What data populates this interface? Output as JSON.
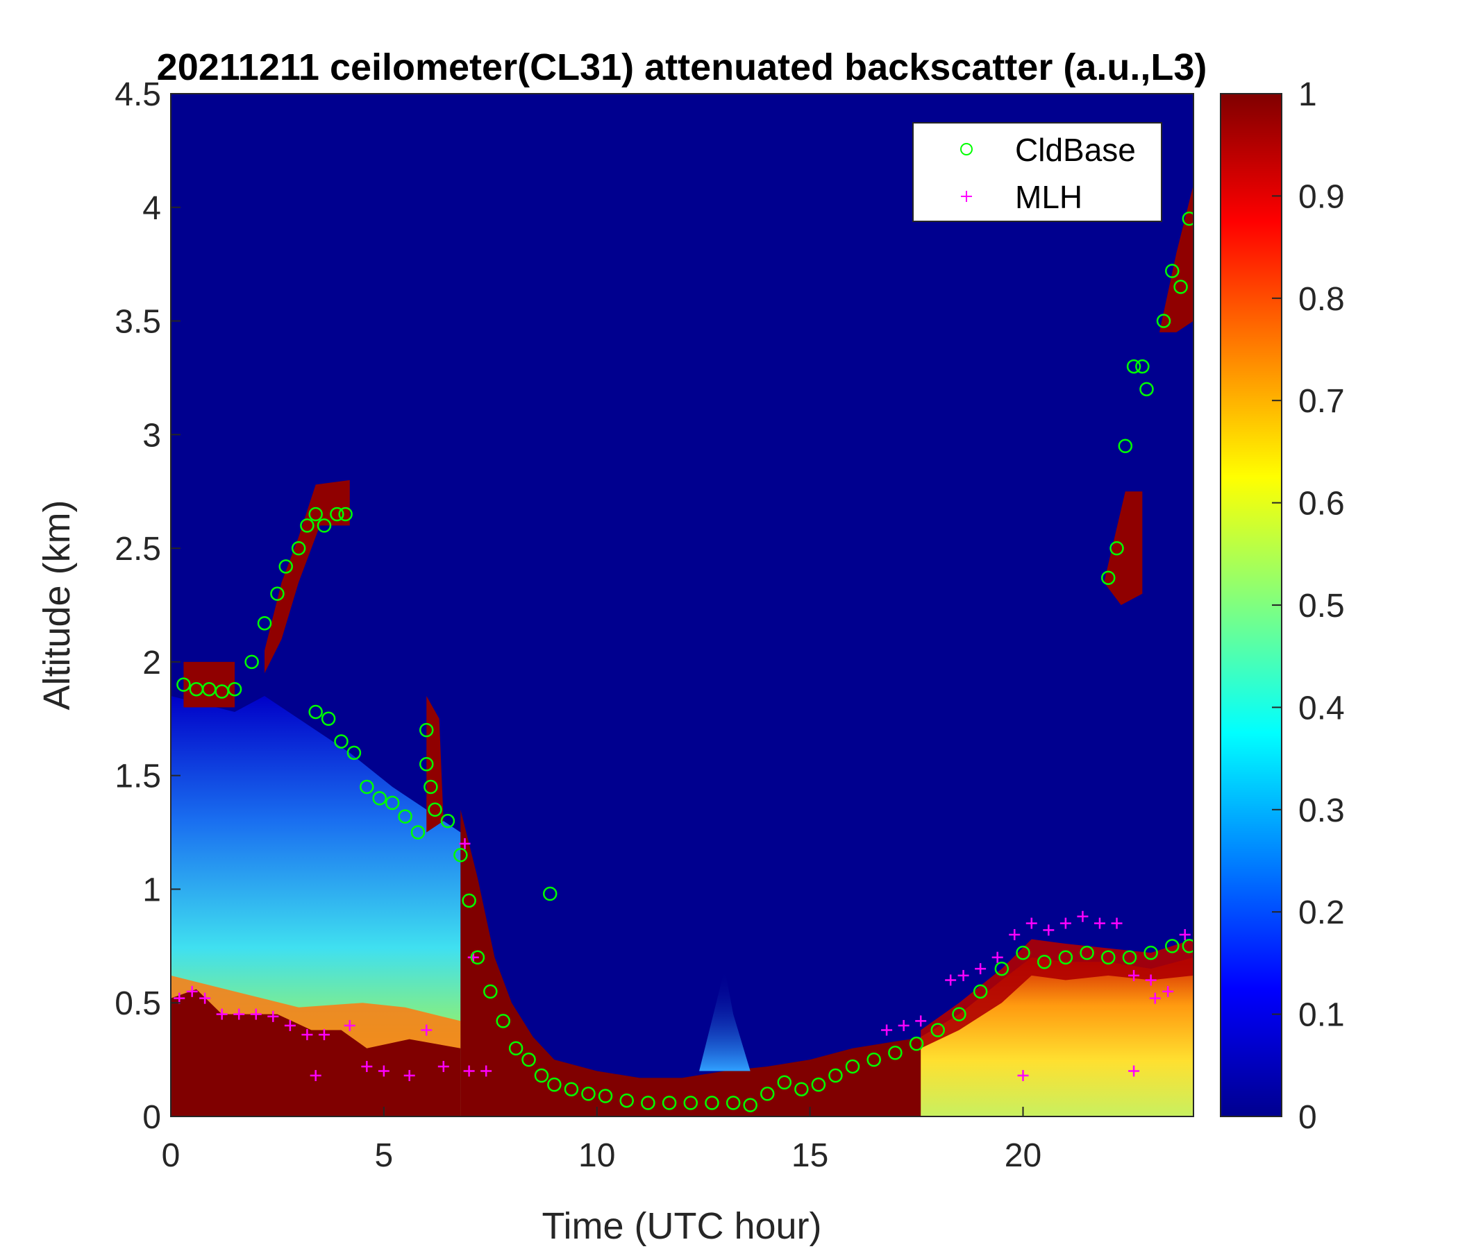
{
  "chart_data": {
    "type": "heatmap",
    "title": "20211211 ceilometer(CL31) attenuated backscatter (a.u.,L3)",
    "xlabel": "Time (UTC hour)",
    "ylabel": "Altitude (km)",
    "xlim": [
      0,
      24
    ],
    "ylim": [
      0,
      4.5
    ],
    "x_ticks": [
      0,
      5,
      10,
      15,
      20
    ],
    "x_tick_labels": [
      "0",
      "5",
      "10",
      "15",
      "20"
    ],
    "y_ticks": [
      0,
      0.5,
      1,
      1.5,
      2,
      2.5,
      3,
      3.5,
      4,
      4.5
    ],
    "y_tick_labels": [
      "0",
      "0.5",
      "1",
      "1.5",
      "2",
      "2.5",
      "3",
      "3.5",
      "4",
      "4.5"
    ],
    "colorbar": {
      "colormap": "jet",
      "range": [
        0,
        1
      ],
      "ticks": [
        0,
        0.1,
        0.2,
        0.3,
        0.4,
        0.5,
        0.6,
        0.7,
        0.8,
        0.9,
        1
      ],
      "tick_labels": [
        "0",
        "0.1",
        "0.2",
        "0.3",
        "0.4",
        "0.5",
        "0.6",
        "0.7",
        "0.8",
        "0.9",
        "1"
      ]
    },
    "grid": false,
    "legend": {
      "position": "top-right",
      "entries": [
        {
          "label": "CldBase",
          "marker": "circle",
          "color": "#00ff00"
        },
        {
          "label": "MLH",
          "marker": "plus",
          "color": "#ff00ff"
        }
      ]
    },
    "field_layers": [
      {
        "kind": "column_profile",
        "x": [
          0,
          6.8
        ],
        "bottom_value": 1.0,
        "top_km": [
          1.8,
          1.3
        ],
        "note": "boundary layer aerosol: high near surface, decreasing upward"
      },
      {
        "kind": "band",
        "x": [
          6.8,
          10
        ],
        "y_top_km": [
          1.2,
          0.2
        ],
        "value": 1.0
      },
      {
        "kind": "band",
        "x": [
          10,
          17.5
        ],
        "y_top_km": [
          0.2,
          0.3
        ],
        "value": 1.0
      },
      {
        "kind": "band",
        "x": [
          17.5,
          24
        ],
        "y_top_km": [
          0.6,
          0.7
        ],
        "value": 0.65
      },
      {
        "kind": "cloud",
        "x": [
          2.2,
          4.2
        ],
        "y_km": [
          2.0,
          2.8
        ],
        "value": 1.0
      },
      {
        "kind": "cloud",
        "x": [
          21.9,
          22.8
        ],
        "y_km": [
          2.3,
          2.8
        ],
        "value": 1.0
      },
      {
        "kind": "cloud",
        "x": [
          23.0,
          24
        ],
        "y_km": [
          3.4,
          4.2
        ],
        "value": 1.0
      }
    ],
    "series": [
      {
        "name": "CldBase",
        "marker": "circle",
        "x": [
          0.3,
          0.6,
          0.9,
          1.2,
          1.5,
          1.9,
          2.2,
          2.5,
          2.7,
          3.0,
          3.2,
          3.4,
          3.6,
          3.9,
          4.1,
          3.4,
          3.7,
          4.0,
          4.3,
          4.6,
          4.9,
          5.2,
          5.5,
          5.8,
          6.0,
          6.0,
          6.1,
          6.2,
          6.5,
          6.8,
          7.0,
          7.2,
          7.5,
          7.8,
          8.1,
          8.4,
          8.7,
          9.0,
          9.4,
          9.8,
          10.2,
          10.7,
          11.2,
          11.7,
          12.2,
          12.7,
          13.2,
          13.6,
          14.0,
          14.4,
          14.8,
          15.2,
          15.6,
          16.0,
          16.5,
          17.0,
          17.5,
          18.0,
          18.5,
          19.0,
          19.5,
          20.0,
          20.5,
          21.0,
          21.5,
          22.0,
          22.5,
          23.0,
          23.5,
          23.9,
          8.9,
          22.0,
          22.2,
          22.4,
          22.6,
          22.8,
          22.9,
          23.3,
          23.5,
          23.7,
          23.9
        ],
        "y": [
          1.9,
          1.88,
          1.88,
          1.87,
          1.88,
          2.0,
          2.17,
          2.3,
          2.42,
          2.5,
          2.6,
          2.65,
          2.6,
          2.65,
          2.65,
          1.78,
          1.75,
          1.65,
          1.6,
          1.45,
          1.4,
          1.38,
          1.32,
          1.25,
          1.7,
          1.55,
          1.45,
          1.35,
          1.3,
          1.15,
          0.95,
          0.7,
          0.55,
          0.42,
          0.3,
          0.25,
          0.18,
          0.14,
          0.12,
          0.1,
          0.09,
          0.07,
          0.06,
          0.06,
          0.06,
          0.06,
          0.06,
          0.05,
          0.1,
          0.15,
          0.12,
          0.14,
          0.18,
          0.22,
          0.25,
          0.28,
          0.32,
          0.38,
          0.45,
          0.55,
          0.65,
          0.72,
          0.68,
          0.7,
          0.72,
          0.7,
          0.7,
          0.72,
          0.75,
          0.75,
          0.98,
          2.37,
          2.5,
          2.95,
          3.3,
          3.3,
          3.2,
          3.5,
          3.72,
          3.65,
          3.95
        ]
      },
      {
        "name": "MLH",
        "marker": "plus",
        "x": [
          0.2,
          0.5,
          0.8,
          1.2,
          1.6,
          2.0,
          2.4,
          2.8,
          3.2,
          3.6,
          3.4,
          4.2,
          4.6,
          5.0,
          5.6,
          6.0,
          6.4,
          7.0,
          7.4,
          6.9,
          7.1,
          18.3,
          18.6,
          19.0,
          19.4,
          19.8,
          20.2,
          20.6,
          21.0,
          21.4,
          21.8,
          22.2,
          22.6,
          23.0,
          23.4,
          23.8,
          20.0,
          22.6,
          16.8,
          17.2,
          17.6,
          23.1
        ],
        "y": [
          0.52,
          0.55,
          0.52,
          0.45,
          0.45,
          0.45,
          0.44,
          0.4,
          0.36,
          0.36,
          0.18,
          0.4,
          0.22,
          0.2,
          0.18,
          0.38,
          0.22,
          0.2,
          0.2,
          1.2,
          0.7,
          0.6,
          0.62,
          0.65,
          0.7,
          0.8,
          0.85,
          0.82,
          0.85,
          0.88,
          0.85,
          0.85,
          0.62,
          0.6,
          0.55,
          0.8,
          0.18,
          0.2,
          0.38,
          0.4,
          0.42,
          0.52
        ]
      }
    ]
  }
}
